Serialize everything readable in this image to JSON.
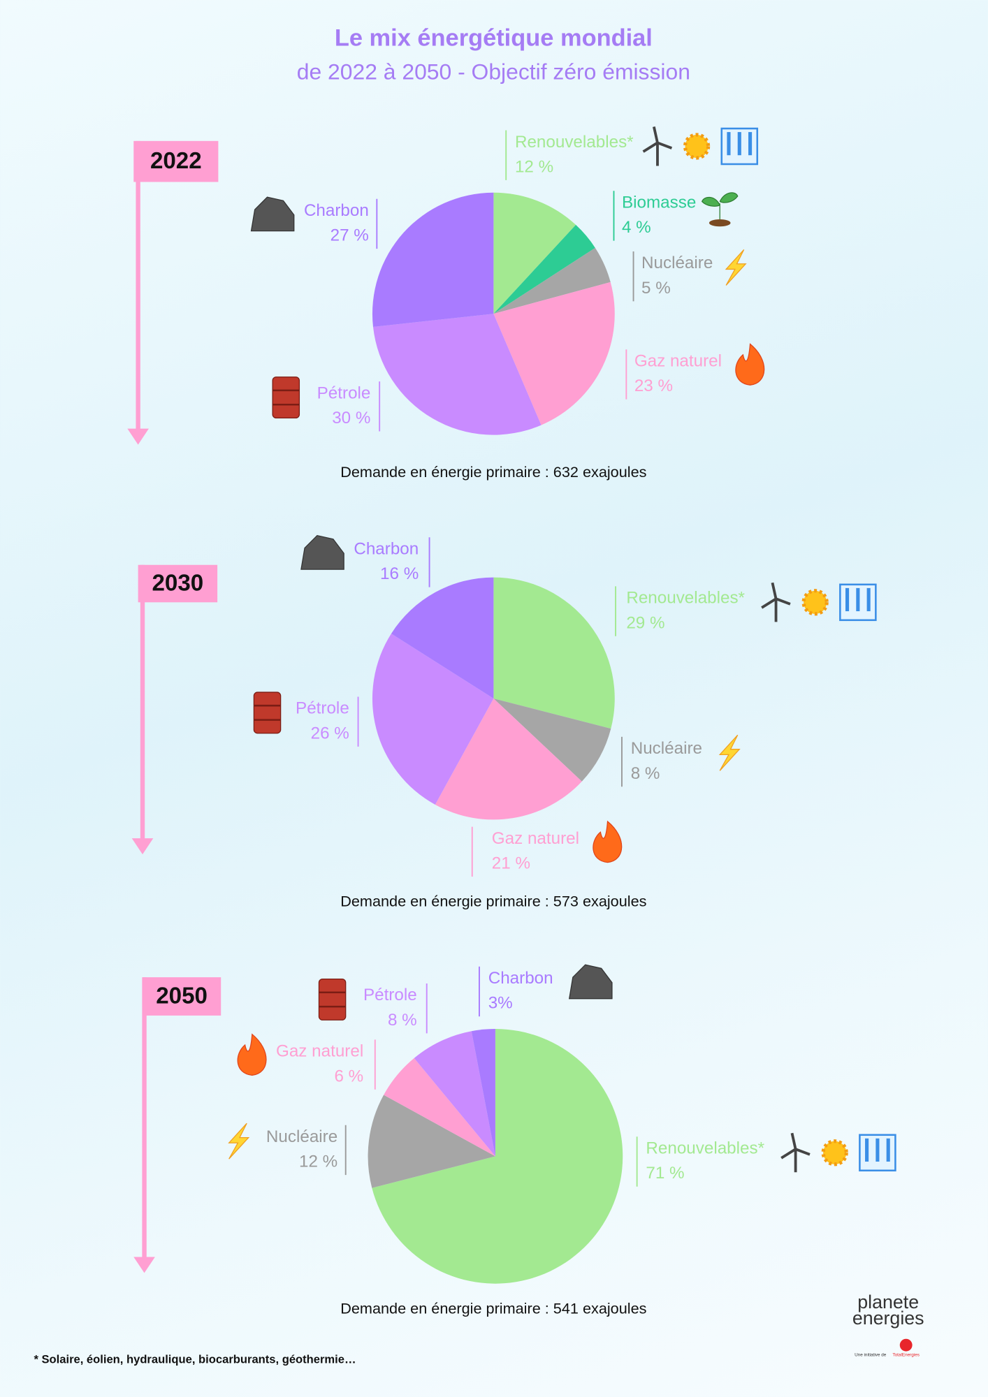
{
  "title": "Le mix énergétique mondial",
  "subtitle": "de 2022 à 2050 - Objectif zéro émission",
  "chart_data": [
    {
      "type": "pie",
      "title": "2022",
      "categories": [
        "Renouvelables*",
        "Biomasse",
        "Nucléaire",
        "Gaz naturel",
        "Pétrole",
        "Charbon"
      ],
      "values": [
        12,
        4,
        5,
        23,
        30,
        27
      ],
      "value_labels": [
        "12 %",
        "4 %",
        "5 %",
        "23 %",
        "30 %",
        "27 %"
      ],
      "colors": [
        "#a3e991",
        "#2dcc94",
        "#a6a6a6",
        "#ff9fd2",
        "#c98bff",
        "#a97bff"
      ],
      "note": "Demande en énergie primaire : 632 exajoules"
    },
    {
      "type": "pie",
      "title": "2030",
      "categories": [
        "Renouvelables*",
        "Nucléaire",
        "Gaz naturel",
        "Pétrole",
        "Charbon"
      ],
      "values": [
        29,
        8,
        21,
        26,
        16
      ],
      "value_labels": [
        "29 %",
        "8 %",
        "21 %",
        "26 %",
        "16 %"
      ],
      "colors": [
        "#a3e991",
        "#a6a6a6",
        "#ff9fd2",
        "#c98bff",
        "#a97bff"
      ],
      "note": "Demande en énergie primaire : 573 exajoules"
    },
    {
      "type": "pie",
      "title": "2050",
      "categories": [
        "Renouvelables*",
        "Nucléaire",
        "Gaz naturel",
        "Pétrole",
        "Charbon"
      ],
      "values": [
        71,
        12,
        6,
        8,
        3
      ],
      "value_labels": [
        "71 %",
        "12 %",
        "6 %",
        "8 %",
        "3%"
      ],
      "colors": [
        "#a3e991",
        "#a6a6a6",
        "#ff9fd2",
        "#c98bff",
        "#a97bff"
      ],
      "note": "Demande en énergie primaire : 541 exajoules"
    }
  ],
  "footnote": "* Solaire, éolien, hydraulique, biocarburants, géothermie…",
  "logo": {
    "lines": [
      "planete",
      "energies"
    ],
    "tagline": "Une initiative de",
    "brand": "TotalEnergies"
  }
}
